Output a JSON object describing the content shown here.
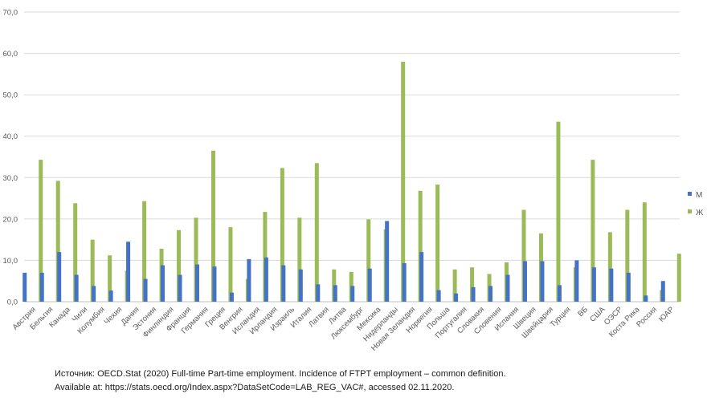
{
  "chart_data": {
    "type": "bar",
    "title": "",
    "xlabel": "",
    "ylabel": "",
    "ylim": [
      0,
      70
    ],
    "yticks": [
      "0,0",
      "10,0",
      "20,0",
      "30,0",
      "40,0",
      "50,0",
      "60,0",
      "70,0"
    ],
    "grid": true,
    "legend_position": "right",
    "categories": [
      "Австрия",
      "Бельгия",
      "Канада",
      "Чили",
      "Колумбия",
      "Чехия",
      "Дания",
      "Эстония",
      "Финляндия",
      "Франция",
      "Германия",
      "Греция",
      "Венгрия",
      "Исландия",
      "Ирландия",
      "Израиль",
      "Италия",
      "Латвия",
      "Литва",
      "Люксембург",
      "Мексика",
      "Нидерланды",
      "Новая Зеландия",
      "Норвегия",
      "Польша",
      "Португалия",
      "Словакия",
      "Словения",
      "Испания",
      "Швеция",
      "Швейцария",
      "Турция",
      "ВБ",
      "США",
      "ОЭСР",
      "Коста Рика",
      "Россия",
      "ЮАР"
    ],
    "series": [
      {
        "name": "М",
        "color": "#4472c4",
        "values": [
          7.0,
          7.0,
          12.0,
          6.5,
          3.8,
          2.7,
          14.5,
          5.5,
          8.8,
          6.5,
          9.0,
          8.5,
          2.2,
          10.3,
          10.7,
          8.8,
          7.8,
          4.2,
          4.0,
          3.8,
          8.0,
          19.5,
          9.3,
          12.0,
          2.8,
          2.0,
          3.5,
          3.8,
          6.5,
          9.8,
          9.8,
          4.0,
          10.0,
          8.3,
          8.0,
          7.0,
          1.5,
          5.0
        ]
      },
      {
        "name": "Ж",
        "color": "#9bbb59",
        "values": [
          34.3,
          29.2,
          23.8,
          15.0,
          11.2,
          7.5,
          24.3,
          12.8,
          17.3,
          20.3,
          36.5,
          18.0,
          5.5,
          21.7,
          32.3,
          20.3,
          33.5,
          7.8,
          7.2,
          19.9,
          17.5,
          58.0,
          26.8,
          28.3,
          7.8,
          8.3,
          6.7,
          9.5,
          22.2,
          16.5,
          43.5,
          8.3,
          34.3,
          16.8,
          22.2,
          24.0,
          2.8,
          11.6
        ]
      }
    ]
  },
  "source": {
    "line1": "Источник: OECD.Stat (2020) Full-time Part-time employment.  Incidence of FTPT employment – common definition.",
    "line2": "Available at: https://stats.oecd.org/Index.aspx?DataSetCode=LAB_REG_VAC#, accessed 02.11.2020."
  }
}
